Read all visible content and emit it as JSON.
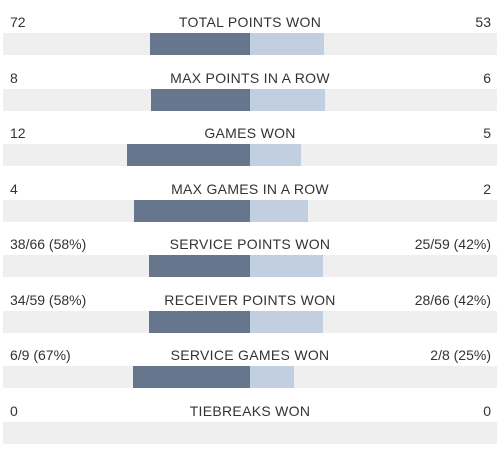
{
  "colors": {
    "player_left": "#65768d",
    "player_right": "#c2cfe0",
    "track": "#efefef"
  },
  "stats": [
    {
      "title": "TOTAL POINTS WON",
      "left_text": "72",
      "right_text": "53",
      "left_share": 0.576,
      "right_share": 0.424
    },
    {
      "title": "MAX POINTS IN A ROW",
      "left_text": "8",
      "right_text": "6",
      "left_share": 0.571,
      "right_share": 0.429
    },
    {
      "title": "GAMES WON",
      "left_text": "12",
      "right_text": "5",
      "left_share": 0.706,
      "right_share": 0.294
    },
    {
      "title": "MAX GAMES IN A ROW",
      "left_text": "4",
      "right_text": "2",
      "left_share": 0.667,
      "right_share": 0.333
    },
    {
      "title": "SERVICE POINTS WON",
      "left_text": "38/66 (58%)",
      "right_text": "25/59 (42%)",
      "left_share": 0.58,
      "right_share": 0.42
    },
    {
      "title": "RECEIVER POINTS WON",
      "left_text": "34/59 (58%)",
      "right_text": "28/66 (42%)",
      "left_share": 0.58,
      "right_share": 0.42
    },
    {
      "title": "SERVICE GAMES WON",
      "left_text": "6/9 (67%)",
      "right_text": "2/8 (25%)",
      "left_share": 0.67,
      "right_share": 0.25
    },
    {
      "title": "TIEBREAKS WON",
      "left_text": "0",
      "right_text": "0",
      "left_share": 0,
      "right_share": 0
    }
  ]
}
